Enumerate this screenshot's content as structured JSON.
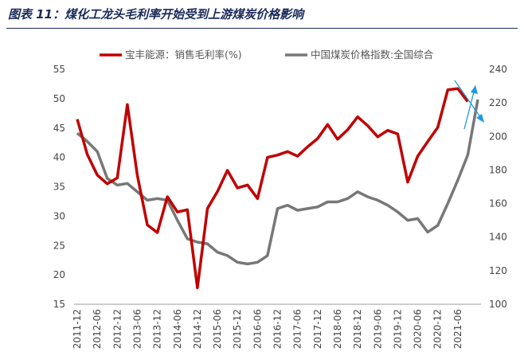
{
  "chart_data": {
    "type": "line",
    "title": "图表 11：煤化工龙头毛利率开始受到上游煤炭价格影响",
    "x_tick_labels": [
      "2011-12",
      "2012-06",
      "2012-12",
      "2013-06",
      "2013-12",
      "2014-06",
      "2014-12",
      "2015-06",
      "2015-12",
      "2016-06",
      "2016-12",
      "2017-06",
      "2017-12",
      "2018-06",
      "2018-12",
      "2019-06",
      "2019-12",
      "2020-06",
      "2020-12",
      "2021-06"
    ],
    "y_left": {
      "min": 15,
      "max": 55,
      "ticks": [
        15,
        20,
        25,
        30,
        35,
        40,
        45,
        50,
        55
      ]
    },
    "y_right": {
      "min": 100,
      "max": 240,
      "ticks": [
        100,
        120,
        140,
        160,
        180,
        200,
        220,
        240
      ]
    },
    "legend_position": "top",
    "series": [
      {
        "name": "宝丰能源：销售毛利率(%)",
        "axis": "left",
        "color": "#c00000",
        "values": [
          46.5,
          40.5,
          37.0,
          35.5,
          36.5,
          49.0,
          37.0,
          28.5,
          27.2,
          33.3,
          30.7,
          31.1,
          17.8,
          31.3,
          34.2,
          37.8,
          34.8,
          35.3,
          33.0,
          40.0,
          40.4,
          41.0,
          40.2,
          41.8,
          43.2,
          45.6,
          43.1,
          44.7,
          46.9,
          45.4,
          43.5,
          44.6,
          44.0,
          35.8,
          40.2,
          42.7,
          45.1,
          51.5,
          51.7,
          49.5
        ]
      },
      {
        "name": "中国煤炭价格指数:全国综合",
        "axis": "right",
        "color": "#777777",
        "values": [
          202,
          197,
          191,
          175,
          171,
          172,
          167,
          162,
          163,
          162,
          150,
          139,
          137,
          136,
          131,
          129,
          125,
          124,
          125,
          129,
          157,
          159,
          156,
          157,
          158,
          161,
          161,
          163,
          167,
          164,
          162,
          159,
          155,
          150,
          151,
          143,
          147,
          160,
          174,
          189,
          222
        ]
      }
    ]
  }
}
